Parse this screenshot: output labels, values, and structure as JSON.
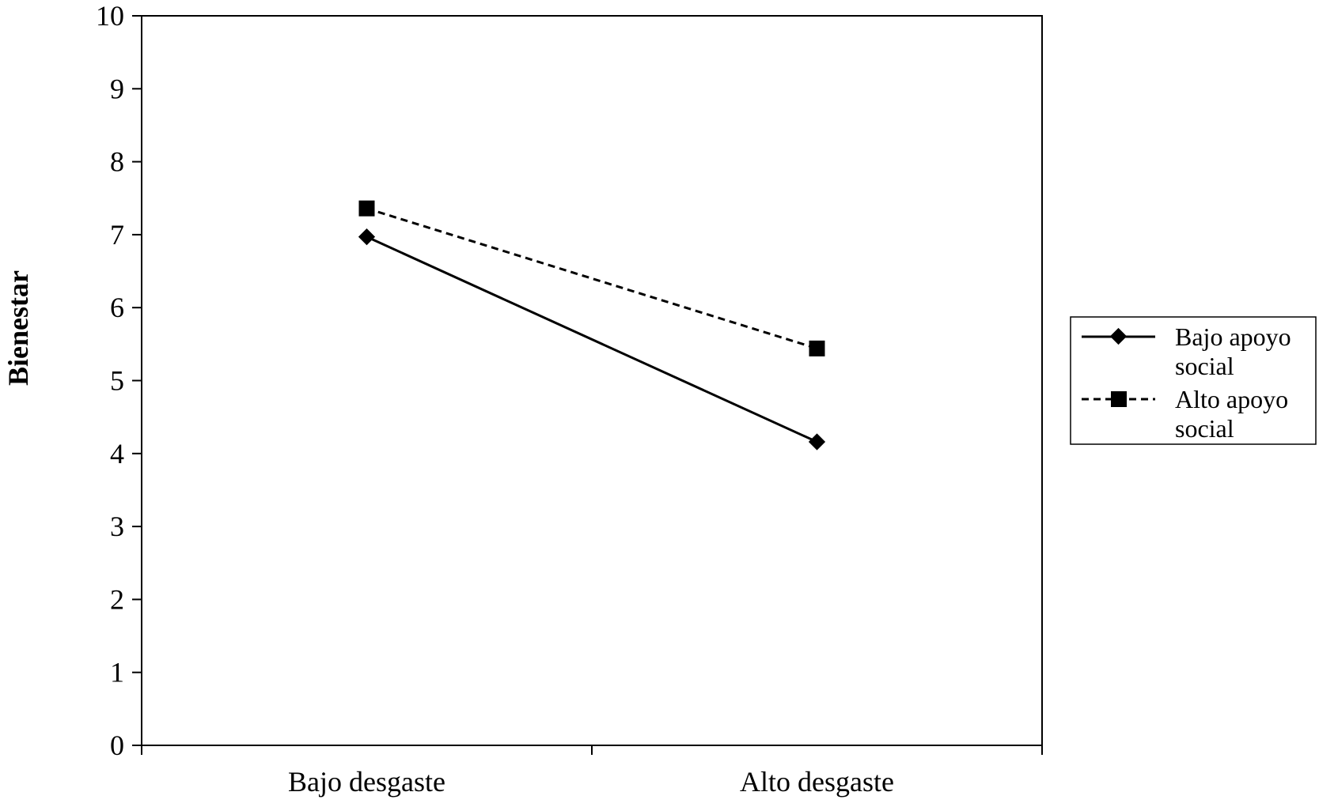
{
  "chart_data": {
    "type": "line",
    "categories": [
      "Bajo desgaste",
      "Alto desgaste"
    ],
    "series": [
      {
        "name": "Bajo apoyo social",
        "values": [
          6.97,
          4.16
        ],
        "style": "solid",
        "marker": "diamond",
        "color": "#000000"
      },
      {
        "name": "Alto apoyo social",
        "values": [
          7.36,
          5.44
        ],
        "style": "dashed",
        "marker": "square",
        "color": "#000000"
      }
    ],
    "title": "",
    "xlabel": "",
    "ylabel": "Bienestar",
    "ylim": [
      0,
      10
    ],
    "yticks": [
      "0",
      "1",
      "2",
      "3",
      "4",
      "5",
      "6",
      "7",
      "8",
      "9",
      "10"
    ],
    "grid": false,
    "legend_position": "right",
    "legend_entries": [
      {
        "line1": "Bajo apoyo",
        "line2": "social"
      },
      {
        "line1": "Alto apoyo",
        "line2": "social"
      }
    ]
  }
}
